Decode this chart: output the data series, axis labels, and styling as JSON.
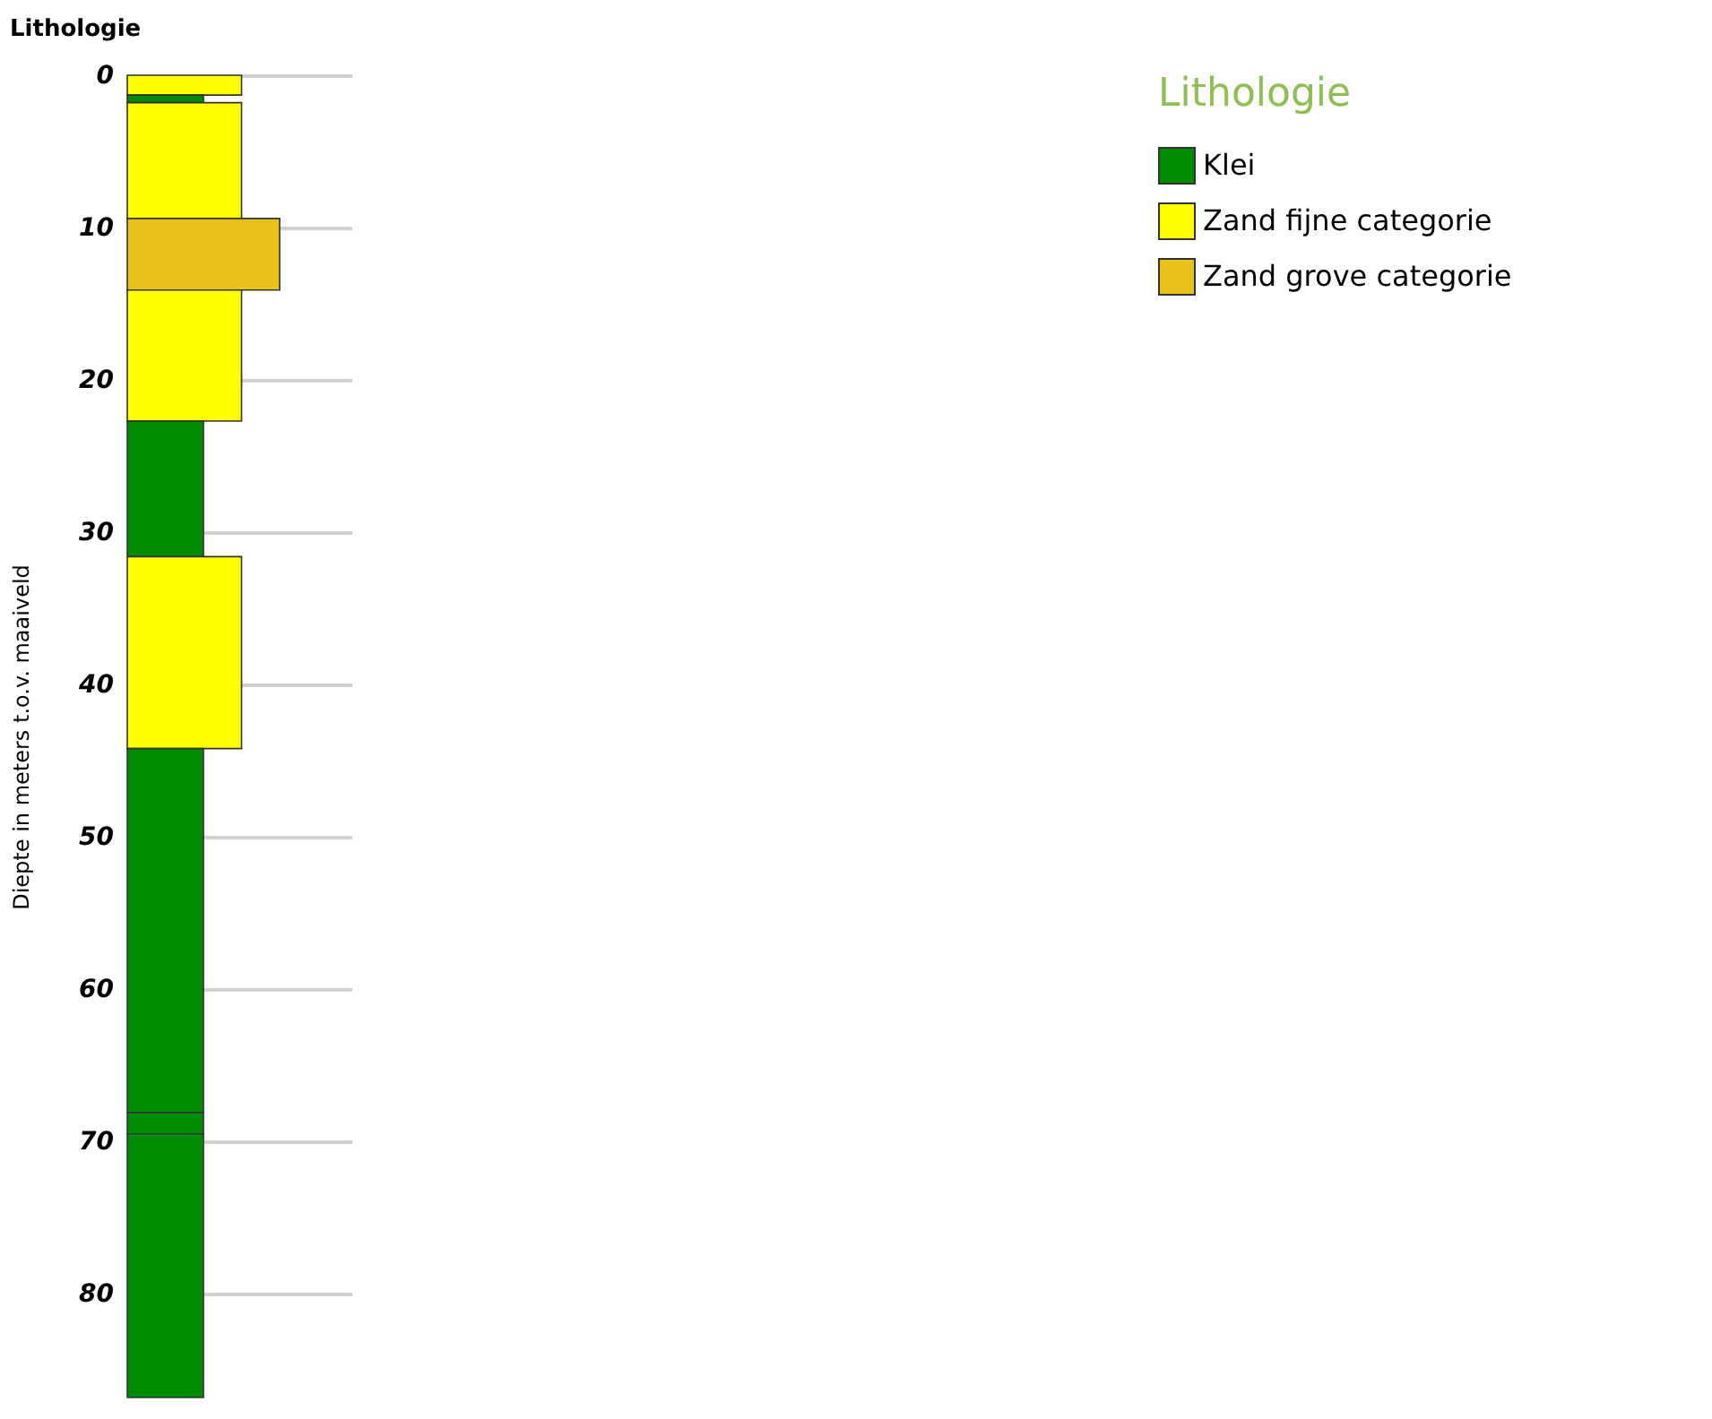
{
  "chart_data": {
    "type": "bar",
    "stacked": true,
    "title": "Lithologie",
    "ylabel": "Diepte in meters t.o.v. maaiveld",
    "legend_title": "Lithologie",
    "legend": "top right",
    "grid": "y",
    "categories": [
      null
    ],
    "ylim": [
      86.8,
      0
    ],
    "yticks": [
      0,
      10,
      20,
      30,
      40,
      50,
      60,
      70,
      80
    ],
    "series": [
      {
        "name": "Zand fijne categorie",
        "color": "#ffff00",
        "values": [
          1.3
        ]
      },
      {
        "name": "Klei",
        "color": "#008c00",
        "values": [
          0.5
        ]
      },
      {
        "color": "#ffff00",
        "values": [
          7.6
        ]
      },
      {
        "name": "Zand grove categorie",
        "color": "#e6c21a",
        "values": [
          4.7
        ]
      },
      {
        "color": "#ffff00",
        "values": [
          8.6
        ]
      },
      {
        "color": "#008c00",
        "values": [
          8.9
        ]
      },
      {
        "color": "#ffff00",
        "values": [
          12.6
        ]
      },
      {
        "color": "#008c00",
        "values": [
          23.9
        ]
      },
      {
        "color": "#008c00",
        "values": [
          1.4
        ]
      },
      {
        "color": "#008c00",
        "values": [
          17.3
        ]
      }
    ]
  }
}
